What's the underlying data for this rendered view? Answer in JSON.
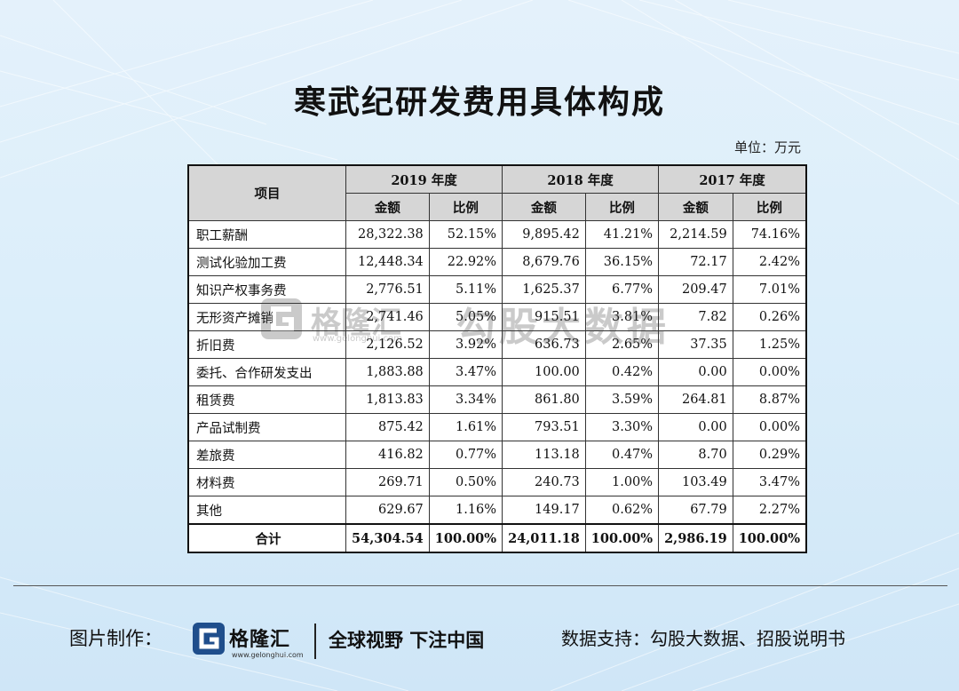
{
  "title": "寒武纪研发费用具体构成",
  "unit": "单位：万元",
  "table": {
    "item_header": "项目",
    "year_headers": [
      "2019 年度",
      "2018 年度",
      "2017 年度"
    ],
    "sub_headers": [
      "金额",
      "比例",
      "金额",
      "比例",
      "金额",
      "比例"
    ],
    "rows": [
      {
        "name": "职工薪酬",
        "cells": [
          "28,322.38",
          "52.15%",
          "9,895.42",
          "41.21%",
          "2,214.59",
          "74.16%"
        ]
      },
      {
        "name": "测试化验加工费",
        "cells": [
          "12,448.34",
          "22.92%",
          "8,679.76",
          "36.15%",
          "72.17",
          "2.42%"
        ]
      },
      {
        "name": "知识产权事务费",
        "cells": [
          "2,776.51",
          "5.11%",
          "1,625.37",
          "6.77%",
          "209.47",
          "7.01%"
        ]
      },
      {
        "name": "无形资产摊销",
        "cells": [
          "2,741.46",
          "5.05%",
          "915.51",
          "3.81%",
          "7.82",
          "0.26%"
        ]
      },
      {
        "name": "折旧费",
        "cells": [
          "2,126.52",
          "3.92%",
          "636.73",
          "2.65%",
          "37.35",
          "1.25%"
        ]
      },
      {
        "name": "委托、合作研发支出",
        "cells": [
          "1,883.88",
          "3.47%",
          "100.00",
          "0.42%",
          "0.00",
          "0.00%"
        ]
      },
      {
        "name": "租赁费",
        "cells": [
          "1,813.83",
          "3.34%",
          "861.80",
          "3.59%",
          "264.81",
          "8.87%"
        ]
      },
      {
        "name": "产品试制费",
        "cells": [
          "875.42",
          "1.61%",
          "793.51",
          "3.30%",
          "0.00",
          "0.00%"
        ]
      },
      {
        "name": "差旅费",
        "cells": [
          "416.82",
          "0.77%",
          "113.18",
          "0.47%",
          "8.70",
          "0.29%"
        ]
      },
      {
        "name": "材料费",
        "cells": [
          "269.71",
          "0.50%",
          "240.73",
          "1.00%",
          "103.49",
          "3.47%"
        ]
      },
      {
        "name": "其他",
        "cells": [
          "629.67",
          "1.16%",
          "149.17",
          "0.62%",
          "67.79",
          "2.27%"
        ]
      }
    ],
    "total": {
      "name": "合计",
      "cells": [
        "54,304.54",
        "100.00%",
        "24,011.18",
        "100.00%",
        "2,986.19",
        "100.00%"
      ]
    }
  },
  "watermark": {
    "logo_text": "格隆汇",
    "url": "www.gelonghui.com",
    "brand": "勾股大数据"
  },
  "footer": {
    "label": "图片制作：",
    "brand": "格隆汇",
    "url": "www.gelonghui.com",
    "slogan": "全球视野 下注中国",
    "source": "数据支持：勾股大数据、招股说明书"
  },
  "colors": {
    "header_bg": "#d6d6d6",
    "logo_blue": "#1f4e8c"
  }
}
